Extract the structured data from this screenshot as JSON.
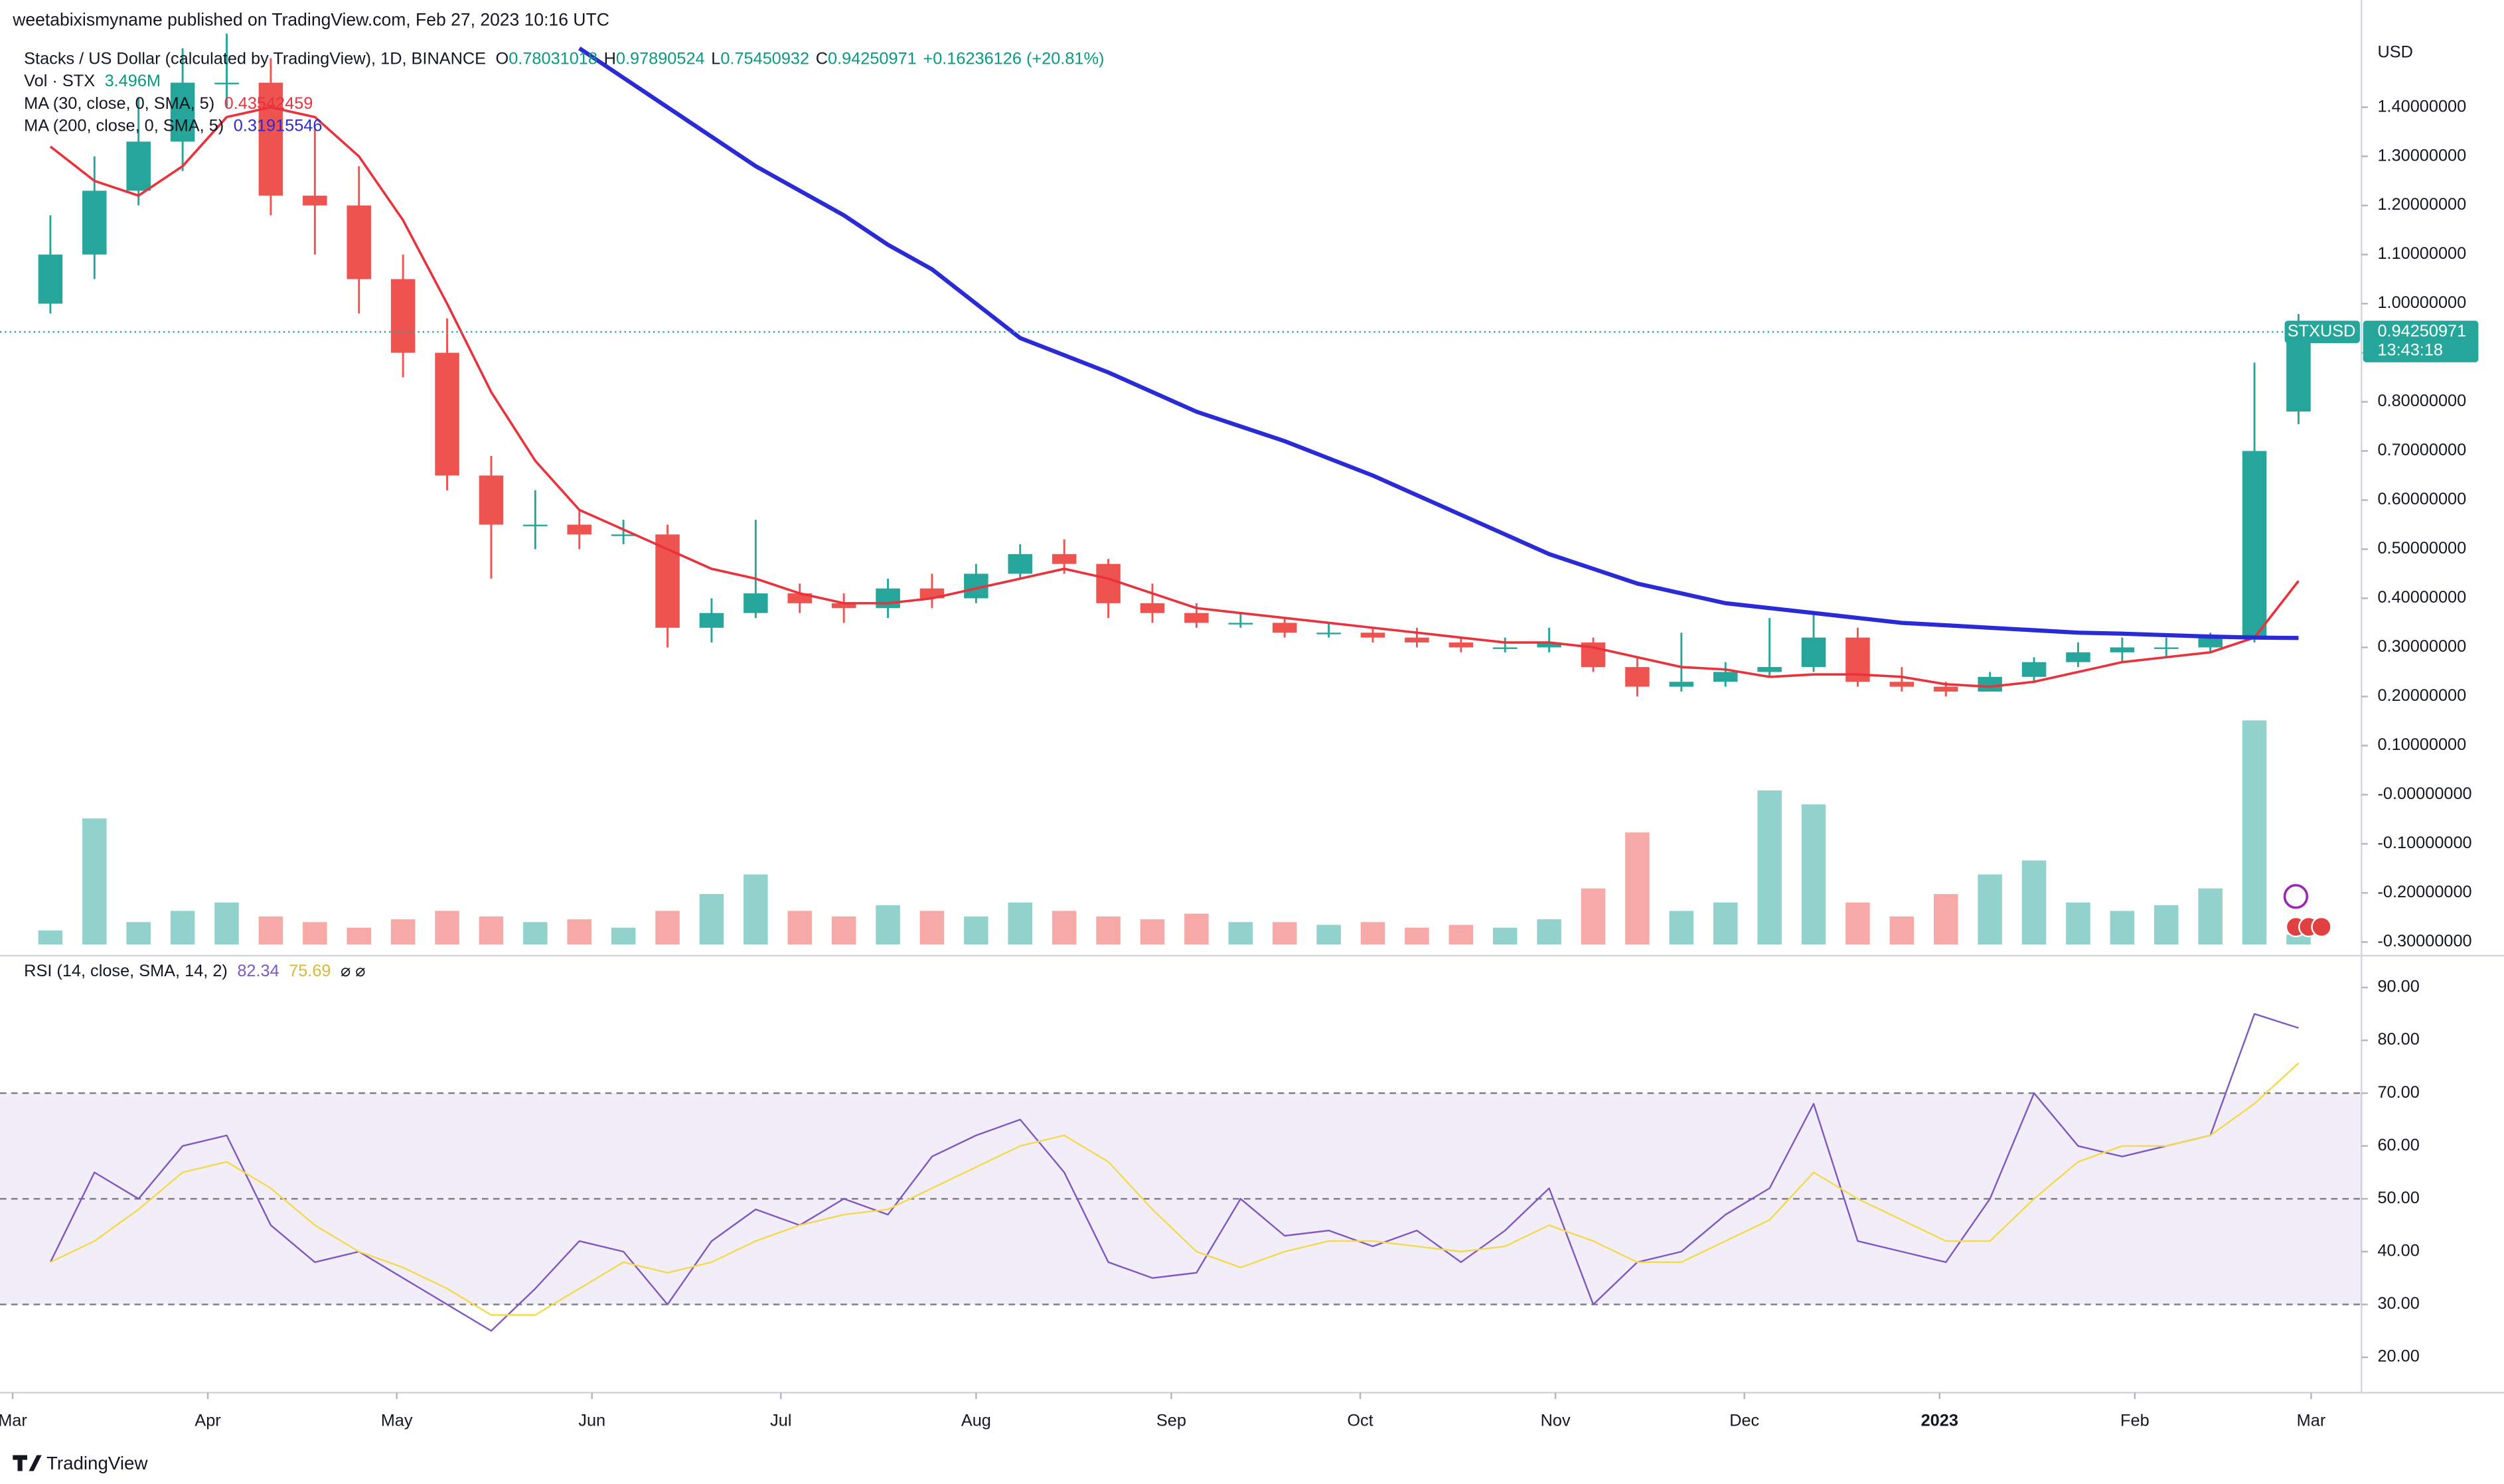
{
  "header": {
    "publisher": "weetabixismyname published on TradingView.com, Feb 27, 2023 10:16 UTC",
    "symbol": "Stacks / US Dollar (calculated by TradingView), 1D, BINANCE",
    "ohlc_labels": [
      "O",
      "H",
      "L",
      "C"
    ],
    "change": "+0.16236126 (+20.81%)"
  },
  "footer": {
    "brand": "TradingView"
  },
  "chart_data": [
    {
      "type": "candlestick",
      "currency": "USD",
      "symbol_tag": "STXUSD",
      "countdown": "13:43:18",
      "up_color": "#26a69a",
      "down_color": "#ef5350",
      "grid": false,
      "x": [
        6,
        13,
        20,
        27,
        34,
        41,
        48,
        55,
        62,
        69,
        76,
        83,
        90,
        97,
        104,
        111,
        118,
        125,
        132,
        139,
        146,
        153,
        160,
        167,
        174,
        181,
        188,
        195,
        202,
        209,
        216,
        223,
        230,
        237,
        244,
        251,
        258,
        265,
        272,
        279,
        286,
        293,
        300,
        307,
        314,
        321,
        328,
        335,
        342,
        349,
        356,
        363
      ],
      "open": [
        1.0,
        1.1,
        1.23,
        1.33,
        1.45,
        1.45,
        1.22,
        1.2,
        1.05,
        0.9,
        0.65,
        0.55,
        0.55,
        0.53,
        0.53,
        0.34,
        0.37,
        0.41,
        0.39,
        0.38,
        0.42,
        0.4,
        0.45,
        0.49,
        0.47,
        0.39,
        0.37,
        0.35,
        0.35,
        0.33,
        0.33,
        0.32,
        0.31,
        0.3,
        0.3,
        0.31,
        0.26,
        0.22,
        0.23,
        0.25,
        0.26,
        0.32,
        0.23,
        0.22,
        0.21,
        0.24,
        0.27,
        0.29,
        0.3,
        0.3,
        0.32,
        0.78031018
      ],
      "high": [
        1.18,
        1.3,
        1.42,
        1.52,
        1.55,
        1.5,
        1.36,
        1.28,
        1.1,
        0.97,
        0.69,
        0.62,
        0.58,
        0.56,
        0.55,
        0.4,
        0.56,
        0.43,
        0.41,
        0.44,
        0.45,
        0.47,
        0.51,
        0.52,
        0.48,
        0.43,
        0.39,
        0.37,
        0.36,
        0.35,
        0.34,
        0.34,
        0.32,
        0.32,
        0.34,
        0.32,
        0.28,
        0.33,
        0.27,
        0.36,
        0.37,
        0.34,
        0.26,
        0.23,
        0.25,
        0.28,
        0.31,
        0.32,
        0.32,
        0.33,
        0.88,
        0.97890524
      ],
      "low": [
        0.98,
        1.05,
        1.2,
        1.27,
        1.4,
        1.18,
        1.1,
        0.98,
        0.85,
        0.62,
        0.44,
        0.5,
        0.5,
        0.51,
        0.3,
        0.31,
        0.36,
        0.37,
        0.35,
        0.36,
        0.38,
        0.39,
        0.44,
        0.45,
        0.36,
        0.35,
        0.34,
        0.34,
        0.32,
        0.32,
        0.31,
        0.3,
        0.29,
        0.29,
        0.29,
        0.25,
        0.2,
        0.21,
        0.22,
        0.24,
        0.25,
        0.22,
        0.21,
        0.2,
        0.21,
        0.23,
        0.26,
        0.27,
        0.28,
        0.29,
        0.31,
        0.75450932
      ],
      "close": [
        1.1,
        1.23,
        1.33,
        1.45,
        1.45,
        1.22,
        1.2,
        1.05,
        0.9,
        0.65,
        0.55,
        0.55,
        0.53,
        0.53,
        0.34,
        0.37,
        0.41,
        0.39,
        0.38,
        0.42,
        0.4,
        0.45,
        0.49,
        0.47,
        0.39,
        0.37,
        0.35,
        0.35,
        0.33,
        0.33,
        0.32,
        0.31,
        0.3,
        0.3,
        0.31,
        0.26,
        0.22,
        0.23,
        0.25,
        0.26,
        0.32,
        0.23,
        0.22,
        0.21,
        0.24,
        0.27,
        0.29,
        0.3,
        0.3,
        0.32,
        0.7,
        0.94250971
      ],
      "series": [
        {
          "name": "MA (30, close, 0, SMA, 5)",
          "color": "#e8323c",
          "values": [
            1.32,
            1.25,
            1.22,
            1.28,
            1.38,
            1.4,
            1.38,
            1.3,
            1.17,
            1.0,
            0.82,
            0.68,
            0.58,
            0.54,
            0.5,
            0.46,
            0.44,
            0.41,
            0.39,
            0.39,
            0.4,
            0.42,
            0.44,
            0.46,
            0.44,
            0.41,
            0.38,
            0.37,
            0.36,
            0.35,
            0.34,
            0.33,
            0.32,
            0.31,
            0.31,
            0.3,
            0.28,
            0.26,
            0.255,
            0.24,
            0.245,
            0.245,
            0.24,
            0.225,
            0.22,
            0.23,
            0.25,
            0.27,
            0.28,
            0.29,
            0.32,
            0.43542459
          ]
        },
        {
          "name": "MA (200, close, 0, SMA, 5)",
          "color": "#2b2bd6",
          "values": [
            null,
            null,
            null,
            null,
            null,
            null,
            null,
            null,
            null,
            null,
            null,
            null,
            1.52,
            1.46,
            1.4,
            1.34,
            1.28,
            1.23,
            1.18,
            1.12,
            1.07,
            1.0,
            0.93,
            0.895,
            0.86,
            0.82,
            0.78,
            0.75,
            0.72,
            0.685,
            0.65,
            0.61,
            0.57,
            0.53,
            0.49,
            0.46,
            0.43,
            0.41,
            0.39,
            0.38,
            0.37,
            0.36,
            0.35,
            0.345,
            0.34,
            0.335,
            0.33,
            0.328,
            0.325,
            0.322,
            0.32,
            0.31915546
          ]
        }
      ],
      "volume": {
        "name": "Vol · STX",
        "values": [
          5,
          45,
          8,
          12,
          15,
          10,
          8,
          6,
          9,
          12,
          10,
          8,
          9,
          6,
          12,
          18,
          25,
          12,
          10,
          14,
          12,
          10,
          15,
          12,
          10,
          9,
          11,
          8,
          8,
          7,
          8,
          6,
          7,
          6,
          9,
          20,
          40,
          12,
          15,
          55,
          50,
          15,
          10,
          18,
          25,
          30,
          15,
          12,
          14,
          20,
          80,
          3.496
        ],
        "value_labels": [
          null,
          null,
          null,
          null,
          null,
          null,
          null,
          null,
          null,
          null,
          null,
          null,
          null,
          null,
          null,
          null,
          null,
          null,
          null,
          null,
          null,
          null,
          null,
          null,
          null,
          null,
          null,
          null,
          null,
          null,
          null,
          null,
          null,
          null,
          null,
          null,
          null,
          null,
          null,
          null,
          null,
          null,
          null,
          null,
          null,
          null,
          null,
          null,
          null,
          null,
          null,
          "3.496M"
        ]
      },
      "xlim": [
        -2,
        373
      ],
      "xticks": [
        {
          "value": 0,
          "label": "Mar"
        },
        {
          "value": 31,
          "label": "Apr"
        },
        {
          "value": 61,
          "label": "May"
        },
        {
          "value": 92,
          "label": "Jun"
        },
        {
          "value": 122,
          "label": "Jul"
        },
        {
          "value": 153,
          "label": "Aug"
        },
        {
          "value": 184,
          "label": "Sep"
        },
        {
          "value": 214,
          "label": "Oct"
        },
        {
          "value": 245,
          "label": "Nov"
        },
        {
          "value": 275,
          "label": "Dec"
        },
        {
          "value": 306,
          "label": "2023"
        },
        {
          "value": 337,
          "label": "Feb"
        },
        {
          "value": 365,
          "label": "Mar"
        }
      ],
      "ylim": [
        -0.305,
        1.553
      ],
      "yticks": [
        {
          "value": 1.4,
          "label": "1.40000000"
        },
        {
          "value": 1.3,
          "label": "1.30000000"
        },
        {
          "value": 1.2,
          "label": "1.20000000"
        },
        {
          "value": 1.1,
          "label": "1.10000000"
        },
        {
          "value": 1.0,
          "label": "1.00000000"
        },
        {
          "value": 0.9,
          "label": "0.90000000"
        },
        {
          "value": 0.8,
          "label": "0.80000000"
        },
        {
          "value": 0.7,
          "label": "0.70000000"
        },
        {
          "value": 0.6,
          "label": "0.60000000"
        },
        {
          "value": 0.5,
          "label": "0.50000000"
        },
        {
          "value": 0.4,
          "label": "0.40000000"
        },
        {
          "value": 0.3,
          "label": "0.30000000"
        },
        {
          "value": 0.2,
          "label": "0.20000000"
        },
        {
          "value": 0.1,
          "label": "0.10000000"
        },
        {
          "value": 0,
          "label": "-0.00000000"
        },
        {
          "value": -0.1,
          "label": "-0.10000000"
        },
        {
          "value": -0.2,
          "label": "-0.20000000"
        },
        {
          "value": -0.3,
          "label": "-0.30000000"
        }
      ]
    },
    {
      "type": "line",
      "title": "RSI (14, close, SMA, 14, 2)",
      "extra": "⌀ ⌀",
      "x": [
        6,
        13,
        20,
        27,
        34,
        41,
        48,
        55,
        62,
        69,
        76,
        83,
        90,
        97,
        104,
        111,
        118,
        125,
        132,
        139,
        146,
        153,
        160,
        167,
        174,
        181,
        188,
        195,
        202,
        209,
        216,
        223,
        230,
        237,
        244,
        251,
        258,
        265,
        272,
        279,
        286,
        293,
        300,
        307,
        314,
        321,
        328,
        335,
        342,
        349,
        356,
        363
      ],
      "series": [
        {
          "color": "#7e57c2",
          "values": [
            38,
            55,
            50,
            60,
            62,
            45,
            38,
            40,
            35,
            30,
            25,
            33,
            42,
            40,
            30,
            42,
            48,
            45,
            50,
            47,
            58,
            62,
            65,
            55,
            38,
            35,
            36,
            50,
            43,
            44,
            41,
            44,
            38,
            44,
            52,
            30,
            38,
            40,
            47,
            52,
            68,
            42,
            40,
            38,
            50,
            70,
            60,
            58,
            60,
            62,
            85,
            82.34
          ]
        },
        {
          "color": "#f2d94e",
          "values": [
            38,
            42,
            48,
            55,
            57,
            52,
            45,
            40,
            37,
            33,
            28,
            28,
            33,
            38,
            36,
            38,
            42,
            45,
            47,
            48,
            52,
            56,
            60,
            62,
            57,
            48,
            40,
            37,
            40,
            42,
            42,
            41,
            40,
            41,
            45,
            42,
            38,
            38,
            42,
            46,
            55,
            50,
            46,
            42,
            42,
            50,
            57,
            60,
            60,
            62,
            68,
            75.69
          ]
        }
      ],
      "band": [
        30,
        70
      ],
      "band_color": "#7e57c2",
      "levels": [
        30,
        50,
        70
      ],
      "xlim": [
        -2,
        373
      ],
      "ylim": [
        13.3,
        93.6
      ],
      "yticks": [
        {
          "value": 20,
          "label": "20.00"
        },
        {
          "value": 30,
          "label": "30.00"
        },
        {
          "value": 40,
          "label": "40.00"
        },
        {
          "value": 50,
          "label": "50.00"
        },
        {
          "value": 60,
          "label": "60.00"
        },
        {
          "value": 70,
          "label": "70.00"
        },
        {
          "value": 80,
          "label": "80.00"
        },
        {
          "value": 90,
          "label": "90.00"
        }
      ]
    }
  ]
}
